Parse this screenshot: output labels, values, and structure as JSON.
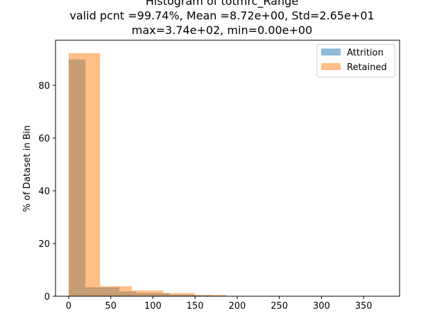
{
  "chart_data": {
    "type": "histogram",
    "title": "Histogram of totmrc_Range",
    "subtitle_lines": [
      "valid pcnt =99.74%, Mean =8.72e+00, Std=2.65e+01",
      "max=3.74e+02, min=0.00e+00"
    ],
    "xlabel": "",
    "ylabel": "% of Dataset in Bin",
    "xlim": [
      -15.6,
      392.7
    ],
    "ylim": [
      0,
      97.1
    ],
    "xticks": [
      0,
      50,
      100,
      150,
      200,
      250,
      300,
      350
    ],
    "yticks": [
      0,
      20,
      40,
      60,
      80
    ],
    "legend_position": "top-right",
    "series": [
      {
        "name": "Attrition",
        "color": "#1f77b4",
        "alpha": 0.5,
        "bins": [
          {
            "x0": 0,
            "x1": 20,
            "value": 89.8
          },
          {
            "x0": 20,
            "x1": 60,
            "value": 3.4
          },
          {
            "x0": 60,
            "x1": 80,
            "value": 1.8
          },
          {
            "x0": 80,
            "x1": 120,
            "value": 1.2
          },
          {
            "x0": 120,
            "x1": 150,
            "value": 0.6
          },
          {
            "x0": 150,
            "x1": 170,
            "value": 0.3
          }
        ]
      },
      {
        "name": "Retained",
        "color": "#ff7f0e",
        "alpha": 0.5,
        "bins": [
          {
            "x0": 0,
            "x1": 37.4,
            "value": 92.2
          },
          {
            "x0": 37.4,
            "x1": 74.8,
            "value": 3.8
          },
          {
            "x0": 74.8,
            "x1": 112.2,
            "value": 2.2
          },
          {
            "x0": 112.2,
            "x1": 149.6,
            "value": 1.2
          },
          {
            "x0": 149.6,
            "x1": 187,
            "value": 0.5
          },
          {
            "x0": 187,
            "x1": 224.4,
            "value": 0.1
          }
        ]
      }
    ]
  }
}
